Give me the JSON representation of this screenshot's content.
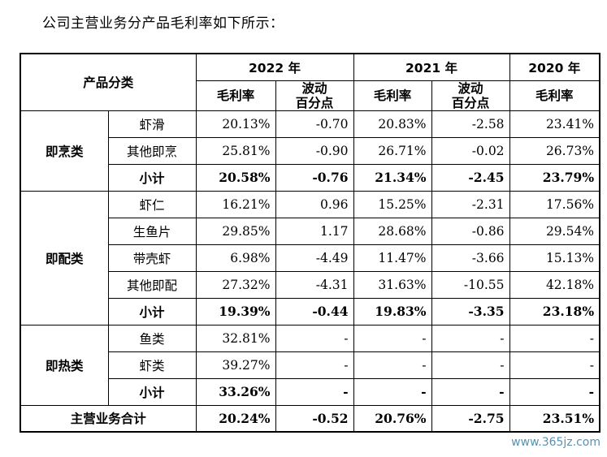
{
  "intro": "公司主营业务分产品毛利率如下所示：",
  "header": {
    "category": "产品分类",
    "y2022": "2022 年",
    "y2021": "2021 年",
    "y2020": "2020 年",
    "gross_margin": "毛利率",
    "change": "波动\n百分点"
  },
  "groups": [
    {
      "name": "即烹类",
      "rows": [
        {
          "product": "虾滑",
          "gm2022": "20.13%",
          "chg2022": "-0.70",
          "gm2021": "20.83%",
          "chg2021": "-2.58",
          "gm2020": "23.41%"
        },
        {
          "product": "其他即烹",
          "gm2022": "25.81%",
          "chg2022": "-0.90",
          "gm2021": "26.71%",
          "chg2021": "-0.02",
          "gm2020": "26.73%"
        }
      ],
      "subtotal": {
        "label": "小计",
        "gm2022": "20.58%",
        "chg2022": "-0.76",
        "gm2021": "21.34%",
        "chg2021": "-2.45",
        "gm2020": "23.79%"
      }
    },
    {
      "name": "即配类",
      "rows": [
        {
          "product": "虾仁",
          "gm2022": "16.21%",
          "chg2022": "0.96",
          "gm2021": "15.25%",
          "chg2021": "-2.31",
          "gm2020": "17.56%"
        },
        {
          "product": "生鱼片",
          "gm2022": "29.85%",
          "chg2022": "1.17",
          "gm2021": "28.68%",
          "chg2021": "-0.86",
          "gm2020": "29.54%"
        },
        {
          "product": "带壳虾",
          "gm2022": "6.98%",
          "chg2022": "-4.49",
          "gm2021": "11.47%",
          "chg2021": "-3.66",
          "gm2020": "15.13%"
        },
        {
          "product": "其他即配",
          "gm2022": "27.32%",
          "chg2022": "-4.31",
          "gm2021": "31.63%",
          "chg2021": "-10.55",
          "gm2020": "42.18%"
        }
      ],
      "subtotal": {
        "label": "小计",
        "gm2022": "19.39%",
        "chg2022": "-0.44",
        "gm2021": "19.83%",
        "chg2021": "-3.35",
        "gm2020": "23.18%"
      }
    },
    {
      "name": "即热类",
      "rows": [
        {
          "product": "鱼类",
          "gm2022": "32.81%",
          "chg2022": "-",
          "gm2021": "-",
          "chg2021": "-",
          "gm2020": "-"
        },
        {
          "product": "虾类",
          "gm2022": "39.27%",
          "chg2022": "-",
          "gm2021": "-",
          "chg2021": "-",
          "gm2020": "-"
        }
      ],
      "subtotal": {
        "label": "小计",
        "gm2022": "33.26%",
        "chg2022": "-",
        "gm2021": "-",
        "chg2021": "-",
        "gm2020": "-"
      }
    }
  ],
  "total": {
    "label": "主营业务合计",
    "gm2022": "20.24%",
    "chg2022": "-0.52",
    "gm2021": "20.76%",
    "chg2021": "-2.75",
    "gm2020": "23.51%"
  },
  "watermark": "www.365jz.com"
}
